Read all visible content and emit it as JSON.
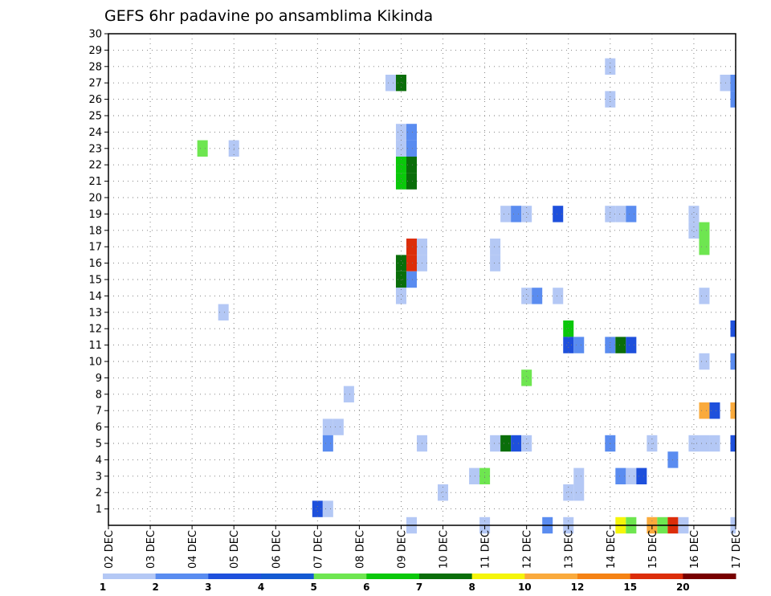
{
  "chart_data": {
    "type": "heatmap",
    "title": "GEFS 6hr padavine po ansamblima Kikinda",
    "x_tick_labels": [
      "02 DEC",
      "03 DEC",
      "04 DEC",
      "05 DEC",
      "06 DEC",
      "07 DEC",
      "08 DEC",
      "09 DEC",
      "10 DEC",
      "11 DEC",
      "12 DEC",
      "13 DEC",
      "14 DEC",
      "15 DEC",
      "16 DEC",
      "17 DEC"
    ],
    "y_tick_labels": [
      "1",
      "2",
      "3",
      "4",
      "5",
      "6",
      "7",
      "8",
      "9",
      "10",
      "11",
      "12",
      "13",
      "14",
      "15",
      "16",
      "17",
      "18",
      "19",
      "20",
      "21",
      "22",
      "23",
      "24",
      "25",
      "26",
      "27",
      "28",
      "29",
      "30"
    ],
    "x_axis_type": "6-hour steps from 02 DEC 00Z to 17 DEC 00Z",
    "ylim": [
      0,
      30
    ],
    "grid": true,
    "legend_position": "bottom",
    "legend": {
      "labels": [
        "1",
        "2",
        "3",
        "4",
        "5",
        "6",
        "7",
        "8",
        "10",
        "12",
        "15",
        "20"
      ],
      "colors": [
        "#b4c8f5",
        "#5a8cf0",
        "#1e50dc",
        "#145ad2",
        "#6ee650",
        "#0ac80a",
        "#0a6e0a",
        "#f5f50a",
        "#faaa3c",
        "#f58214",
        "#dc2d0a",
        "#780000"
      ]
    },
    "cells": [
      {
        "member": 28,
        "day": 14.0,
        "class": 1
      },
      {
        "member": 27,
        "day": 8.75,
        "class": 1
      },
      {
        "member": 27,
        "day": 9.0,
        "class": 7
      },
      {
        "member": 27,
        "day": 16.75,
        "class": 1
      },
      {
        "member": 27,
        "day": 17.0,
        "class": 2
      },
      {
        "member": 26,
        "day": 14.0,
        "class": 1
      },
      {
        "member": 26,
        "day": 17.0,
        "class": 2
      },
      {
        "member": 24,
        "day": 9.0,
        "class": 1
      },
      {
        "member": 24,
        "day": 9.25,
        "class": 2
      },
      {
        "member": 23,
        "day": 4.25,
        "class": 5
      },
      {
        "member": 23,
        "day": 5.0,
        "class": 1
      },
      {
        "member": 23,
        "day": 9.0,
        "class": 1
      },
      {
        "member": 23,
        "day": 9.25,
        "class": 2
      },
      {
        "member": 22,
        "day": 9.0,
        "class": 6
      },
      {
        "member": 22,
        "day": 9.25,
        "class": 7
      },
      {
        "member": 21,
        "day": 9.0,
        "class": 6
      },
      {
        "member": 21,
        "day": 9.25,
        "class": 7
      },
      {
        "member": 19,
        "day": 11.5,
        "class": 1
      },
      {
        "member": 19,
        "day": 11.75,
        "class": 2
      },
      {
        "member": 19,
        "day": 12.0,
        "class": 1
      },
      {
        "member": 19,
        "day": 12.75,
        "class": 3
      },
      {
        "member": 19,
        "day": 14.0,
        "class": 1
      },
      {
        "member": 19,
        "day": 14.25,
        "class": 1
      },
      {
        "member": 19,
        "day": 14.5,
        "class": 2
      },
      {
        "member": 19,
        "day": 16.0,
        "class": 1
      },
      {
        "member": 18,
        "day": 16.0,
        "class": 1
      },
      {
        "member": 18,
        "day": 16.25,
        "class": 5
      },
      {
        "member": 17,
        "day": 9.25,
        "class": 11
      },
      {
        "member": 17,
        "day": 9.5,
        "class": 1
      },
      {
        "member": 17,
        "day": 11.25,
        "class": 1
      },
      {
        "member": 17,
        "day": 16.25,
        "class": 5
      },
      {
        "member": 16,
        "day": 9.0,
        "class": 7
      },
      {
        "member": 16,
        "day": 9.25,
        "class": 11
      },
      {
        "member": 16,
        "day": 9.5,
        "class": 1
      },
      {
        "member": 16,
        "day": 11.25,
        "class": 1
      },
      {
        "member": 15,
        "day": 9.0,
        "class": 7
      },
      {
        "member": 15,
        "day": 9.25,
        "class": 2
      },
      {
        "member": 14,
        "day": 9.0,
        "class": 1
      },
      {
        "member": 14,
        "day": 12.0,
        "class": 1
      },
      {
        "member": 14,
        "day": 12.25,
        "class": 2
      },
      {
        "member": 14,
        "day": 12.75,
        "class": 1
      },
      {
        "member": 14,
        "day": 16.25,
        "class": 1
      },
      {
        "member": 13,
        "day": 4.75,
        "class": 1
      },
      {
        "member": 12,
        "day": 13.0,
        "class": 6
      },
      {
        "member": 12,
        "day": 17.0,
        "class": 3
      },
      {
        "member": 11,
        "day": 13.0,
        "class": 3
      },
      {
        "member": 11,
        "day": 13.25,
        "class": 2
      },
      {
        "member": 11,
        "day": 14.0,
        "class": 2
      },
      {
        "member": 11,
        "day": 14.25,
        "class": 7
      },
      {
        "member": 11,
        "day": 14.5,
        "class": 3
      },
      {
        "member": 10,
        "day": 16.25,
        "class": 1
      },
      {
        "member": 10,
        "day": 17.0,
        "class": 2
      },
      {
        "member": 9,
        "day": 12.0,
        "class": 5
      },
      {
        "member": 8,
        "day": 7.75,
        "class": 1
      },
      {
        "member": 7,
        "day": 16.25,
        "class": 9
      },
      {
        "member": 7,
        "day": 16.5,
        "class": 3
      },
      {
        "member": 7,
        "day": 17.0,
        "class": 9
      },
      {
        "member": 6,
        "day": 7.25,
        "class": 1
      },
      {
        "member": 6,
        "day": 7.5,
        "class": 1
      },
      {
        "member": 5,
        "day": 7.25,
        "class": 2
      },
      {
        "member": 5,
        "day": 9.5,
        "class": 1
      },
      {
        "member": 5,
        "day": 11.25,
        "class": 1
      },
      {
        "member": 5,
        "day": 11.5,
        "class": 7
      },
      {
        "member": 5,
        "day": 11.75,
        "class": 3
      },
      {
        "member": 5,
        "day": 12.0,
        "class": 1
      },
      {
        "member": 5,
        "day": 14.0,
        "class": 2
      },
      {
        "member": 5,
        "day": 15.0,
        "class": 1
      },
      {
        "member": 5,
        "day": 16.0,
        "class": 1
      },
      {
        "member": 5,
        "day": 16.25,
        "class": 1
      },
      {
        "member": 5,
        "day": 16.5,
        "class": 1
      },
      {
        "member": 5,
        "day": 17.0,
        "class": 3
      },
      {
        "member": 4,
        "day": 15.5,
        "class": 2
      },
      {
        "member": 3,
        "day": 10.75,
        "class": 1
      },
      {
        "member": 3,
        "day": 11.0,
        "class": 5
      },
      {
        "member": 3,
        "day": 13.25,
        "class": 1
      },
      {
        "member": 3,
        "day": 14.25,
        "class": 2
      },
      {
        "member": 3,
        "day": 14.5,
        "class": 1
      },
      {
        "member": 3,
        "day": 14.75,
        "class": 3
      },
      {
        "member": 2,
        "day": 10.0,
        "class": 1
      },
      {
        "member": 2,
        "day": 13.0,
        "class": 1
      },
      {
        "member": 2,
        "day": 13.25,
        "class": 1
      },
      {
        "member": 1,
        "day": 7.0,
        "class": 3
      },
      {
        "member": 1,
        "day": 7.25,
        "class": 1
      },
      {
        "member": 0,
        "day": 9.25,
        "class": 1
      },
      {
        "member": 0,
        "day": 11.0,
        "class": 1
      },
      {
        "member": 0,
        "day": 12.5,
        "class": 2
      },
      {
        "member": 0,
        "day": 13.0,
        "class": 1
      },
      {
        "member": 0,
        "day": 14.25,
        "class": 8
      },
      {
        "member": 0,
        "day": 14.5,
        "class": 5
      },
      {
        "member": 0,
        "day": 15.0,
        "class": 9
      },
      {
        "member": 0,
        "day": 15.25,
        "class": 5
      },
      {
        "member": 0,
        "day": 15.5,
        "class": 11
      },
      {
        "member": 0,
        "day": 15.75,
        "class": 1
      },
      {
        "member": 0,
        "day": 17.0,
        "class": 1
      }
    ]
  }
}
